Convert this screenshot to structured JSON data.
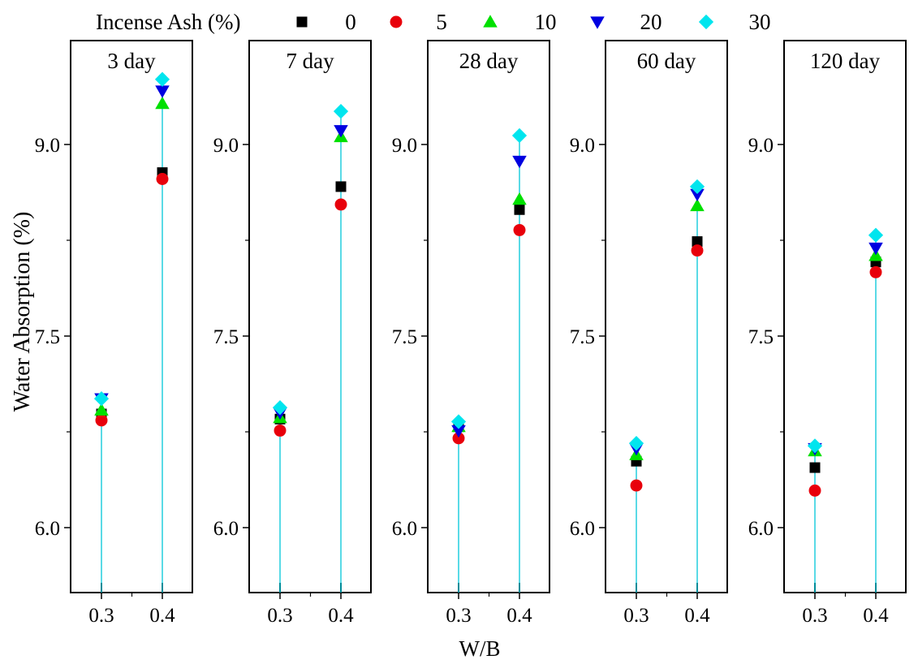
{
  "chart_data": {
    "type": "scatter",
    "legend_title": "Incense Ash (%)",
    "ylabel": "Water Absorption (%)",
    "xlabel": "W/B",
    "ylim": [
      5.5,
      9.85
    ],
    "yticks": [
      "6.0",
      "7.5",
      "9.0"
    ],
    "ytick_values": [
      6.0,
      7.5,
      9.0
    ],
    "x_categories": [
      "0.3",
      "0.4"
    ],
    "legend_position": "top",
    "panels": [
      {
        "title": "3 day"
      },
      {
        "title": "7 day"
      },
      {
        "title": "28 day"
      },
      {
        "title": "60 day"
      },
      {
        "title": "120 day"
      }
    ],
    "series": [
      {
        "name": "0",
        "marker": "square",
        "color": "#000000",
        "values": [
          [
            6.89,
            8.78
          ],
          [
            6.85,
            8.67
          ],
          [
            6.79,
            8.49
          ],
          [
            6.52,
            8.24
          ],
          [
            6.47,
            8.08
          ]
        ]
      },
      {
        "name": "5",
        "marker": "circle",
        "color": "#e8000b",
        "values": [
          [
            6.84,
            8.73
          ],
          [
            6.76,
            8.53
          ],
          [
            6.7,
            8.33
          ],
          [
            6.33,
            8.17
          ],
          [
            6.29,
            8.0
          ]
        ]
      },
      {
        "name": "10",
        "marker": "triangle-up",
        "color": "#00e000",
        "values": [
          [
            6.92,
            9.32
          ],
          [
            6.86,
            9.06
          ],
          [
            6.79,
            8.57
          ],
          [
            6.57,
            8.52
          ],
          [
            6.6,
            8.13
          ]
        ]
      },
      {
        "name": "20",
        "marker": "triangle-down",
        "color": "#0000e0",
        "values": [
          [
            7.01,
            9.42
          ],
          [
            6.9,
            9.11
          ],
          [
            6.76,
            8.87
          ],
          [
            6.62,
            8.61
          ],
          [
            6.62,
            8.19
          ]
        ]
      },
      {
        "name": "30",
        "marker": "diamond",
        "color": "#00e5ee",
        "values": [
          [
            7.01,
            9.51
          ],
          [
            6.94,
            9.26
          ],
          [
            6.83,
            9.07
          ],
          [
            6.66,
            8.67
          ],
          [
            6.64,
            8.29
          ]
        ]
      }
    ]
  }
}
